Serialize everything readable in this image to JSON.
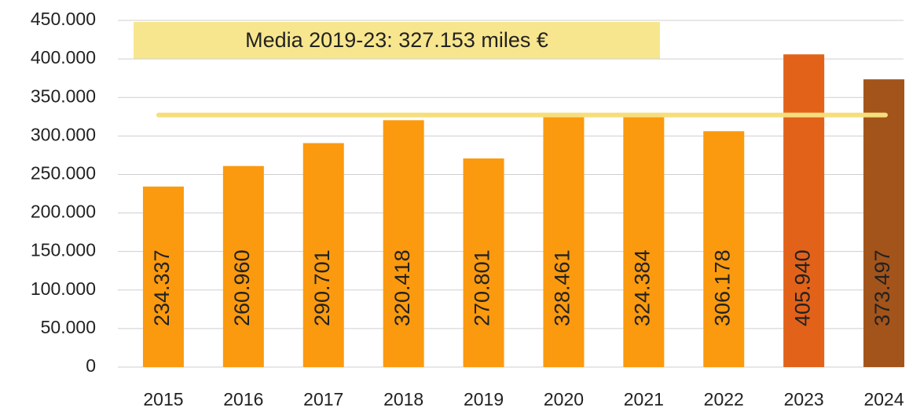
{
  "chart_data": {
    "type": "bar",
    "categories": [
      "2015",
      "2016",
      "2017",
      "2018",
      "2019",
      "2020",
      "2021",
      "2022",
      "2023",
      "2024"
    ],
    "values": [
      234337,
      260960,
      290701,
      320418,
      270801,
      328461,
      324384,
      306178,
      405940,
      373497
    ],
    "value_labels": [
      "234.337",
      "260.960",
      "290.701",
      "320.418",
      "270.801",
      "328.461",
      "324.384",
      "306.178",
      "405.940",
      "373.497"
    ],
    "colors": [
      "#fb9a0e",
      "#fb9a0e",
      "#fb9a0e",
      "#fb9a0e",
      "#fb9a0e",
      "#fb9a0e",
      "#fb9a0e",
      "#fb9a0e",
      "#e2621a",
      "#a3541a"
    ],
    "value_label_colors": [
      "#111111",
      "#111111",
      "#111111",
      "#111111",
      "#111111",
      "#111111",
      "#111111",
      "#111111",
      "#ffffff",
      "#ffffff"
    ],
    "ylim": [
      0,
      450000
    ],
    "yticks": [
      {
        "value": 0,
        "label": "0"
      },
      {
        "value": 50000,
        "label": "50.000"
      },
      {
        "value": 100000,
        "label": "100.000"
      },
      {
        "value": 150000,
        "label": "150.000"
      },
      {
        "value": 200000,
        "label": "200.000"
      },
      {
        "value": 250000,
        "label": "250.000"
      },
      {
        "value": 300000,
        "label": "300.000"
      },
      {
        "value": 350000,
        "label": "350.000"
      },
      {
        "value": 400000,
        "label": "400.000"
      },
      {
        "value": 450000,
        "label": "450.000"
      }
    ],
    "grid": true,
    "mean_line": {
      "value": 327153,
      "label": "Media 2019-23: 327.153 miles €",
      "color": "#f6de7c"
    }
  }
}
